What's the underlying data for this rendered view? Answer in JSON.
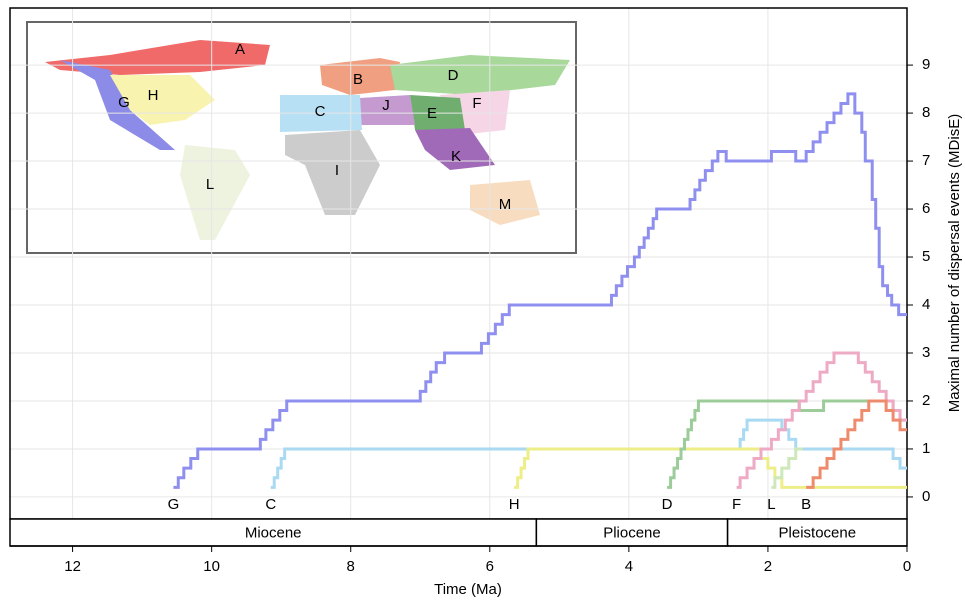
{
  "chart_data": {
    "type": "step-line",
    "x_label": "Time (Ma)",
    "y_label": "Maximal number of dispersal events (MDisE)",
    "xlim": [
      12.9,
      0
    ],
    "xticks": [
      12,
      10,
      8,
      6,
      4,
      2,
      0
    ],
    "ylim": [
      -0.46,
      10.19
    ],
    "yticks": [
      0,
      1,
      2,
      3,
      4,
      5,
      6,
      7,
      8,
      9
    ],
    "grid": true,
    "epochs": [
      {
        "name": "Miocene",
        "start": 12.9,
        "end": 5.33
      },
      {
        "name": "Pliocene",
        "start": 5.33,
        "end": 2.58
      },
      {
        "name": "Pleistocene",
        "start": 2.58,
        "end": 0
      }
    ],
    "map_labels": [
      "A",
      "B",
      "C",
      "D",
      "E",
      "F",
      "G",
      "H",
      "I",
      "J",
      "K",
      "L",
      "M"
    ],
    "series": [
      {
        "name": "G",
        "color": "#8f8ff0",
        "x": [
          10.55,
          10.48,
          10.4,
          10.3,
          10.2,
          9.3,
          9.22,
          9.12,
          9.02,
          8.92,
          7.0,
          6.92,
          6.85,
          6.77,
          6.65,
          6.12,
          6.02,
          5.92,
          5.82,
          5.72,
          4.25,
          4.18,
          4.1,
          4.02,
          3.92,
          3.85,
          3.78,
          3.72,
          3.65,
          3.6,
          3.12,
          3.05,
          2.98,
          2.9,
          2.8,
          2.72,
          2.6,
          1.95,
          1.6,
          1.45,
          1.35,
          1.25,
          1.15,
          1.05,
          0.95,
          0.85,
          0.75,
          0.65,
          0.6,
          0.5,
          0.45,
          0.4,
          0.35,
          0.28,
          0.22,
          0.12,
          0
        ],
        "values": [
          0.2,
          0.4,
          0.6,
          0.8,
          1.0,
          1.2,
          1.4,
          1.6,
          1.8,
          2.0,
          2.2,
          2.4,
          2.6,
          2.8,
          3.0,
          3.2,
          3.4,
          3.6,
          3.8,
          4.0,
          4.2,
          4.4,
          4.6,
          4.8,
          5.0,
          5.2,
          5.4,
          5.6,
          5.8,
          6.0,
          6.2,
          6.4,
          6.6,
          6.8,
          7.0,
          7.2,
          7.0,
          7.2,
          7.0,
          7.2,
          7.4,
          7.6,
          7.8,
          8.0,
          8.2,
          8.4,
          8.0,
          7.6,
          7.0,
          6.2,
          5.6,
          4.8,
          4.4,
          4.2,
          4.0,
          3.8,
          3.8
        ]
      },
      {
        "name": "C",
        "color": "#a9daf2",
        "x": [
          9.15,
          9.1,
          9.05,
          9.0,
          8.95,
          2.4,
          2.35,
          2.3,
          2.2,
          1.8,
          1.7,
          1.6,
          0.2,
          0.1,
          0
        ],
        "values": [
          0.2,
          0.4,
          0.6,
          0.8,
          1.0,
          1.2,
          1.4,
          1.6,
          1.6,
          1.4,
          1.2,
          1.0,
          0.8,
          0.6,
          0.6
        ]
      },
      {
        "name": "H",
        "color": "#eeee88",
        "x": [
          5.65,
          5.6,
          5.55,
          5.5,
          5.45,
          2.1,
          2.0,
          1.9,
          1.8,
          0
        ],
        "values": [
          0.2,
          0.4,
          0.6,
          0.8,
          1.0,
          0.8,
          0.6,
          0.4,
          0.2,
          0.2
        ]
      },
      {
        "name": "D",
        "color": "#9ccc99",
        "x": [
          3.45,
          3.4,
          3.35,
          3.3,
          3.25,
          3.2,
          3.15,
          3.1,
          3.05,
          3.0,
          1.55,
          1.2,
          0.2,
          0.1,
          0
        ],
        "values": [
          0.2,
          0.4,
          0.6,
          0.8,
          1.0,
          1.2,
          1.4,
          1.6,
          1.8,
          2.0,
          1.8,
          2.0,
          1.8,
          1.6,
          1.6
        ]
      },
      {
        "name": "F",
        "color": "#eeaac4",
        "x": [
          2.45,
          2.4,
          2.3,
          2.2,
          2.1,
          1.95,
          1.85,
          1.75,
          1.65,
          1.55,
          1.45,
          1.35,
          1.25,
          1.15,
          1.05,
          0.7,
          0.6,
          0.5,
          0.4,
          0.3,
          0.2,
          0.1,
          0
        ],
        "values": [
          0.2,
          0.4,
          0.6,
          0.8,
          1.0,
          1.2,
          1.4,
          1.6,
          1.8,
          2.0,
          2.2,
          2.4,
          2.6,
          2.8,
          3.0,
          2.8,
          2.6,
          2.4,
          2.2,
          2.0,
          1.8,
          1.6,
          1.6
        ]
      },
      {
        "name": "L",
        "color": "#cfe8bb",
        "x": [
          1.95,
          1.9,
          1.8,
          1.7,
          1.6,
          1.5
        ],
        "values": [
          0.2,
          0.4,
          0.6,
          0.8,
          1.0,
          1.0
        ]
      },
      {
        "name": "B",
        "color": "#ee8b6c",
        "x": [
          1.45,
          1.35,
          1.25,
          1.15,
          1.05,
          0.95,
          0.85,
          0.75,
          0.65,
          0.55,
          0.3,
          0.2,
          0.1,
          0
        ],
        "values": [
          0.2,
          0.4,
          0.6,
          0.8,
          1.0,
          1.2,
          1.4,
          1.6,
          1.8,
          2.0,
          1.8,
          1.6,
          1.4,
          1.4
        ]
      }
    ]
  }
}
